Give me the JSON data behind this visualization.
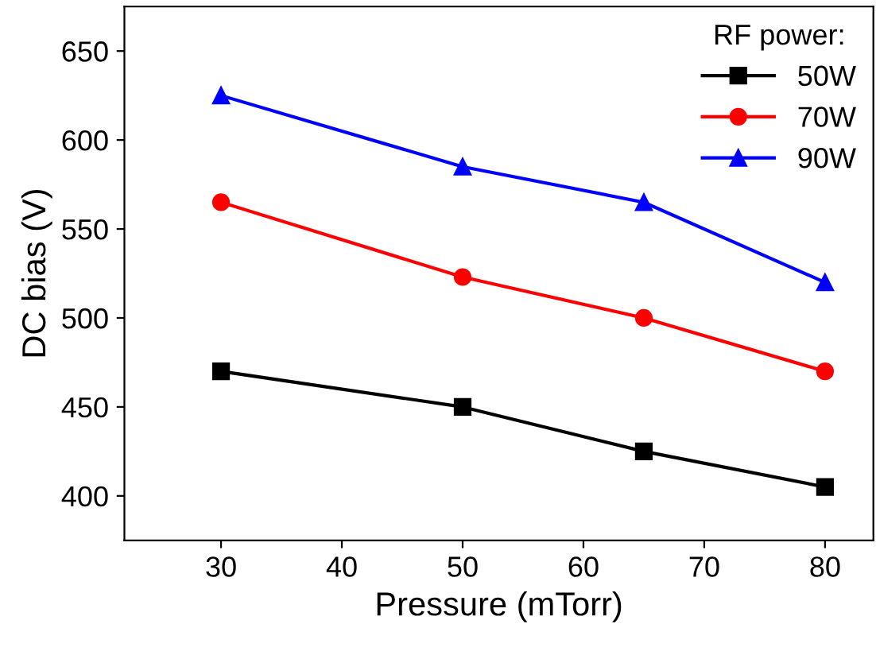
{
  "chart_data": {
    "type": "line",
    "xlabel": "Pressure (mTorr)",
    "ylabel": "DC bias (V)",
    "legend_title": "RF power:",
    "x": [
      30,
      50,
      65,
      80
    ],
    "series": [
      {
        "name": "50W",
        "color": "#000000",
        "marker": "square",
        "values": [
          470,
          450,
          425,
          405
        ]
      },
      {
        "name": "70W",
        "color": "#ff0000",
        "marker": "circle",
        "values": [
          565,
          523,
          500,
          470
        ]
      },
      {
        "name": "90W",
        "color": "#0000ff",
        "marker": "triangle",
        "values": [
          625,
          585,
          565,
          520
        ]
      }
    ],
    "xlim": [
      22,
      84
    ],
    "xticks": [
      30,
      40,
      50,
      60,
      70,
      80
    ],
    "ylim": [
      375,
      675
    ],
    "yticks": [
      400,
      450,
      500,
      550,
      600,
      650
    ],
    "legend": "top right",
    "grid": false,
    "line_style": "solid"
  }
}
